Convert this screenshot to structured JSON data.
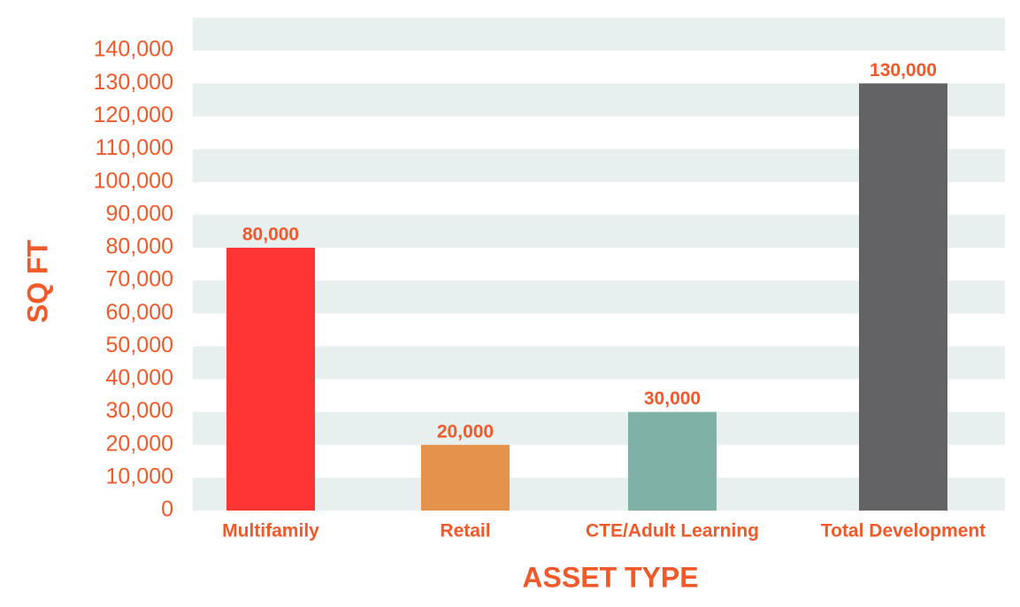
{
  "chart_data": {
    "type": "bar",
    "categories": [
      "Multifamily",
      "Retail",
      "CTE/Adult Learning",
      "Total Development"
    ],
    "values": [
      80000,
      20000,
      30000,
      130000
    ],
    "value_labels": [
      "80,000",
      "20,000",
      "30,000",
      "130,000"
    ],
    "colors": [
      "#ff3535",
      "#e5924b",
      "#80b1a7",
      "#636365"
    ],
    "x_label": "ASSET TYPE",
    "y_label": "SQ FT",
    "ylim": [
      0,
      150000
    ],
    "yticks": [
      0,
      {
        "value": 10000,
        "label": "10,000"
      },
      {
        "value": 20000,
        "label": "20,000"
      },
      {
        "value": 30000,
        "label": "30,000"
      },
      {
        "value": 40000,
        "label": "40,000"
      },
      {
        "value": 50000,
        "label": "50,000"
      },
      {
        "value": 60000,
        "label": "60,000"
      },
      {
        "value": 70000,
        "label": "70,000"
      },
      {
        "value": 80000,
        "label": "80,000"
      },
      {
        "value": 90000,
        "label": "90,000"
      },
      {
        "value": 100000,
        "label": "100,000"
      },
      {
        "value": 110000,
        "label": "110,000"
      },
      {
        "value": 120000,
        "label": "120,000"
      },
      {
        "value": 130000,
        "label": "130,000"
      },
      {
        "value": 140000,
        "label": "140,000"
      }
    ],
    "grid": "bands"
  }
}
